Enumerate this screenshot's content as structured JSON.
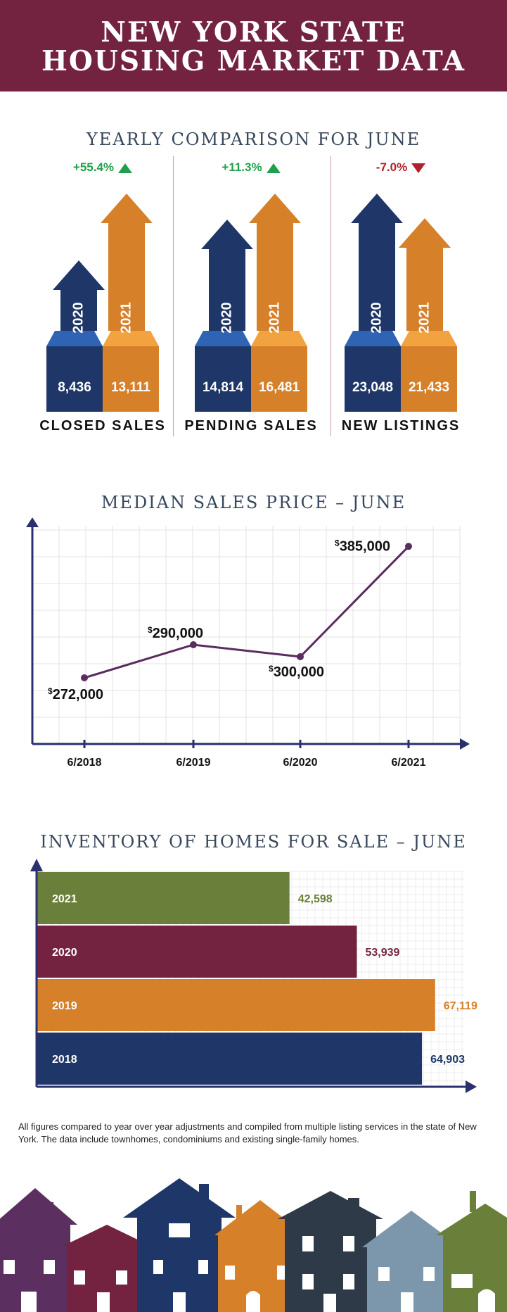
{
  "header": {
    "line1": "NEW YORK STATE",
    "line2": "HOUSING MARKET DATA"
  },
  "colors": {
    "banner": "#732240",
    "navy": "#1f3668",
    "navy_top": "#2f64b4",
    "orange": "#d6802a",
    "orange_top": "#f2a23e",
    "green": "#6a803a",
    "maroon": "#732240",
    "up": "#20a04a",
    "down": "#b3202a"
  },
  "comparison": {
    "title": "YEARLY COMPARISON FOR JUNE",
    "metrics": [
      {
        "label": "CLOSED SALES",
        "change": "+55.4%",
        "direction": "up",
        "year_a": "2020",
        "year_b": "2021",
        "value_a": "8,436",
        "value_b": "13,111"
      },
      {
        "label": "PENDING SALES",
        "change": "+11.3%",
        "direction": "up",
        "year_a": "2020",
        "year_b": "2021",
        "value_a": "14,814",
        "value_b": "16,481"
      },
      {
        "label": "NEW LISTINGS",
        "change": "-7.0%",
        "direction": "down",
        "year_a": "2020",
        "year_b": "2021",
        "value_a": "23,048",
        "value_b": "21,433"
      }
    ]
  },
  "chart_data": [
    {
      "type": "line",
      "title": "MEDIAN SALES PRICE – JUNE",
      "categories": [
        "6/2018",
        "6/2019",
        "6/2020",
        "6/2021"
      ],
      "series": [
        {
          "values": [
            272000,
            290000,
            300000,
            385000
          ]
        }
      ],
      "point_labels": [
        "$272,000",
        "$290,000",
        "$300,000",
        "$385,000"
      ],
      "grid": true,
      "color": "#5a2d5e"
    },
    {
      "type": "bar",
      "orientation": "horizontal",
      "title": "INVENTORY OF HOMES FOR SALE – JUNE",
      "categories": [
        "2021",
        "2020",
        "2019",
        "2018"
      ],
      "values": [
        42598,
        53939,
        67119,
        64903
      ],
      "value_labels": [
        "42,598",
        "53,939",
        "67,119",
        "64,903"
      ],
      "bar_colors": [
        "#6a803a",
        "#732240",
        "#d6802a",
        "#1f3668"
      ],
      "xlim": [
        0,
        72000
      ],
      "grid": true
    }
  ],
  "footnote": "All figures compared to year over year adjustments and compiled from multiple listing services in the state of New York.  The data include townhomes, condominiums and existing single-family homes."
}
